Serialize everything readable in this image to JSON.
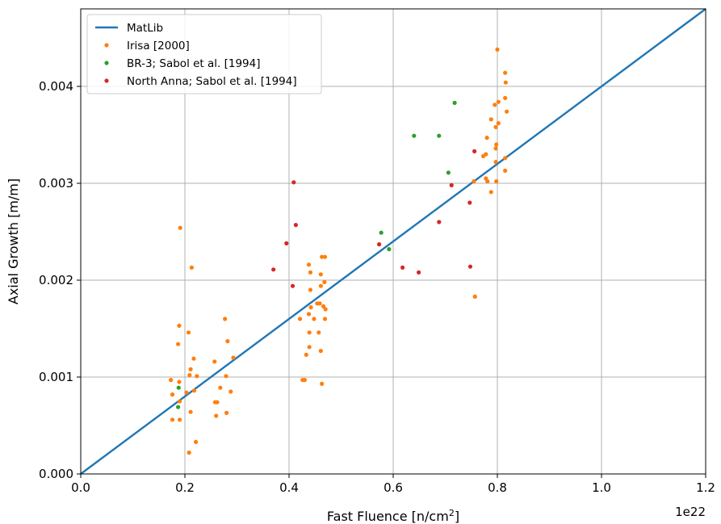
{
  "chart_data": {
    "type": "scatter",
    "xlabel": "Fast Fluence [n/cm",
    "xlabel_sup": "2",
    "xlabel_end": "]",
    "ylabel": "Axial Growth [m/m]",
    "x_offset_text": "1e22",
    "xlim": [
      0.0,
      1.2
    ],
    "ylim": [
      0.0,
      0.0048
    ],
    "xticks": [
      "0.0",
      "0.2",
      "0.4",
      "0.6",
      "0.8",
      "1.0",
      "1.2"
    ],
    "yticks": [
      "0.000",
      "0.001",
      "0.002",
      "0.003",
      "0.004"
    ],
    "grid": true,
    "legend_position": "top-left",
    "series": [
      {
        "name": "MatLib",
        "kind": "line",
        "color": "#1f77b4",
        "points": [
          [
            0.0,
            0.0
          ],
          [
            1.2,
            0.0048
          ]
        ]
      },
      {
        "name": "Irisa [2000]",
        "kind": "scatter",
        "color": "#ff7f0e",
        "points": [
          [
            0.191,
            0.00254
          ],
          [
            0.213,
            0.00213
          ],
          [
            0.189,
            0.00153
          ],
          [
            0.207,
            0.00146
          ],
          [
            0.187,
            0.00134
          ],
          [
            0.217,
            0.00119
          ],
          [
            0.211,
            0.00108
          ],
          [
            0.223,
            0.00101
          ],
          [
            0.209,
            0.00102
          ],
          [
            0.173,
            0.00097
          ],
          [
            0.189,
            0.00095
          ],
          [
            0.218,
            0.00086
          ],
          [
            0.203,
            0.00084
          ],
          [
            0.176,
            0.00082
          ],
          [
            0.19,
            0.00075
          ],
          [
            0.211,
            0.00064
          ],
          [
            0.176,
            0.00056
          ],
          [
            0.19,
            0.00056
          ],
          [
            0.221,
            0.00033
          ],
          [
            0.208,
            0.00022
          ],
          [
            0.277,
            0.0016
          ],
          [
            0.282,
            0.00137
          ],
          [
            0.293,
            0.0012
          ],
          [
            0.257,
            0.00116
          ],
          [
            0.279,
            0.00101
          ],
          [
            0.268,
            0.00089
          ],
          [
            0.288,
            0.00085
          ],
          [
            0.262,
            0.00074
          ],
          [
            0.258,
            0.00074
          ],
          [
            0.28,
            0.00063
          ],
          [
            0.26,
            0.0006
          ],
          [
            0.438,
            0.00216
          ],
          [
            0.441,
            0.00208
          ],
          [
            0.463,
            0.00224
          ],
          [
            0.469,
            0.00224
          ],
          [
            0.461,
            0.00206
          ],
          [
            0.468,
            0.00198
          ],
          [
            0.461,
            0.00194
          ],
          [
            0.441,
            0.0019
          ],
          [
            0.459,
            0.00176
          ],
          [
            0.466,
            0.00173
          ],
          [
            0.454,
            0.00176
          ],
          [
            0.442,
            0.00172
          ],
          [
            0.47,
            0.0017
          ],
          [
            0.438,
            0.00165
          ],
          [
            0.421,
            0.0016
          ],
          [
            0.448,
            0.0016
          ],
          [
            0.469,
            0.0016
          ],
          [
            0.439,
            0.00146
          ],
          [
            0.457,
            0.00146
          ],
          [
            0.439,
            0.00131
          ],
          [
            0.461,
            0.00127
          ],
          [
            0.433,
            0.00123
          ],
          [
            0.426,
            0.00097
          ],
          [
            0.43,
            0.00097
          ],
          [
            0.463,
            0.00093
          ],
          [
            0.8,
            0.00438
          ],
          [
            0.815,
            0.00414
          ],
          [
            0.816,
            0.00404
          ],
          [
            0.815,
            0.00388
          ],
          [
            0.802,
            0.00384
          ],
          [
            0.795,
            0.00381
          ],
          [
            0.818,
            0.00374
          ],
          [
            0.788,
            0.00366
          ],
          [
            0.802,
            0.00362
          ],
          [
            0.797,
            0.00358
          ],
          [
            0.78,
            0.00347
          ],
          [
            0.798,
            0.0034
          ],
          [
            0.797,
            0.00336
          ],
          [
            0.778,
            0.0033
          ],
          [
            0.773,
            0.00328
          ],
          [
            0.815,
            0.00326
          ],
          [
            0.797,
            0.00322
          ],
          [
            0.815,
            0.00313
          ],
          [
            0.778,
            0.00305
          ],
          [
            0.781,
            0.00302
          ],
          [
            0.798,
            0.00302
          ],
          [
            0.755,
            0.00302
          ],
          [
            0.788,
            0.00291
          ],
          [
            0.757,
            0.00183
          ]
        ]
      },
      {
        "name": "BR-3; Sabol et al. [1994]",
        "kind": "scatter",
        "color": "#2ca02c",
        "points": [
          [
            0.188,
            0.00089
          ],
          [
            0.187,
            0.00069
          ],
          [
            0.577,
            0.00249
          ],
          [
            0.592,
            0.00232
          ],
          [
            0.64,
            0.00349
          ],
          [
            0.688,
            0.00349
          ],
          [
            0.706,
            0.00311
          ],
          [
            0.718,
            0.00383
          ]
        ]
      },
      {
        "name": "North Anna; Sabol et al. [1994]",
        "kind": "scatter",
        "color": "#d62728",
        "points": [
          [
            0.409,
            0.00301
          ],
          [
            0.413,
            0.00257
          ],
          [
            0.395,
            0.00238
          ],
          [
            0.37,
            0.00211
          ],
          [
            0.407,
            0.00194
          ],
          [
            0.573,
            0.00237
          ],
          [
            0.618,
            0.00213
          ],
          [
            0.649,
            0.00208
          ],
          [
            0.712,
            0.00298
          ],
          [
            0.688,
            0.0026
          ],
          [
            0.756,
            0.00333
          ],
          [
            0.747,
            0.0028
          ],
          [
            0.748,
            0.00214
          ]
        ]
      }
    ]
  }
}
